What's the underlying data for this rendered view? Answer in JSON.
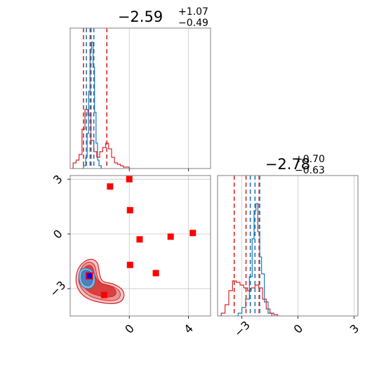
{
  "chart_data": [
    {
      "type": "histogram",
      "panel": "param1-marginal",
      "title": {
        "main": "−2.59",
        "sup": "+1.07",
        "sub": "−0.49"
      },
      "xlim": [
        -4.0,
        5.5
      ],
      "xticks": [
        0,
        4
      ],
      "ylim": [
        0,
        1
      ],
      "grid": true,
      "series": [
        {
          "name": "",
          "color": "#1f77b4",
          "x": [
            -3.2,
            -3.0,
            -2.9,
            -2.8,
            -2.7,
            -2.6,
            -2.5,
            -2.4,
            -2.3,
            -2.2,
            -2.1,
            -2.0,
            -1.8
          ],
          "y": [
            0.0,
            0.02,
            0.08,
            0.25,
            0.55,
            0.85,
            0.9,
            0.72,
            0.4,
            0.18,
            0.06,
            0.02,
            0.0
          ]
        },
        {
          "name": "",
          "color": "#d62728",
          "x": [
            -3.9,
            -3.7,
            -3.5,
            -3.3,
            -3.1,
            -2.9,
            -2.7,
            -2.5,
            -2.3,
            -2.1,
            -1.9,
            -1.7,
            -1.5,
            -1.3,
            -1.1,
            -0.9,
            -0.7,
            -0.5,
            -0.3,
            -0.1,
            0.1
          ],
          "y": [
            0.0,
            0.04,
            0.06,
            0.1,
            0.28,
            0.42,
            0.38,
            0.2,
            0.12,
            0.08,
            0.12,
            0.15,
            0.18,
            0.14,
            0.08,
            0.04,
            0.03,
            0.02,
            0.01,
            0.01,
            0.0
          ]
        }
      ],
      "vlines": [
        {
          "x": -3.1,
          "color": "#d62728"
        },
        {
          "x": -2.59,
          "color": "#d62728"
        },
        {
          "x": -1.52,
          "color": "#d62728"
        },
        {
          "x": -2.9,
          "color": "#1f77b4"
        },
        {
          "x": -2.65,
          "color": "#1f77b4"
        },
        {
          "x": -2.4,
          "color": "#1f77b4"
        }
      ]
    },
    {
      "type": "histogram",
      "panel": "param2-marginal",
      "title": {
        "main": "−2.78",
        "sup": "+0.70",
        "sub": "−0.63"
      },
      "xlim": [
        -4.3,
        3.2
      ],
      "xticks": [
        -3,
        0,
        3
      ],
      "xtick_labels": [
        "−3",
        "0",
        "3"
      ],
      "ylim": [
        0,
        1
      ],
      "grid": true,
      "series": [
        {
          "name": "",
          "color": "#1f77b4",
          "x": [
            -3.3,
            -3.1,
            -2.9,
            -2.7,
            -2.5,
            -2.4,
            -2.3,
            -2.2,
            -2.1,
            -2.0,
            -1.9,
            -1.7,
            -1.5,
            -1.3
          ],
          "y": [
            0.0,
            0.02,
            0.06,
            0.12,
            0.28,
            0.55,
            0.75,
            0.8,
            0.6,
            0.42,
            0.3,
            0.1,
            0.02,
            0.0
          ]
        },
        {
          "name": "",
          "color": "#d62728",
          "x": [
            -4.2,
            -4.0,
            -3.8,
            -3.6,
            -3.4,
            -3.2,
            -3.0,
            -2.8,
            -2.6,
            -2.4,
            -2.2,
            -2.0,
            -1.8,
            -1.6,
            -1.4,
            -1.2,
            -1.0
          ],
          "y": [
            0.0,
            0.02,
            0.08,
            0.18,
            0.25,
            0.24,
            0.22,
            0.2,
            0.18,
            0.2,
            0.22,
            0.2,
            0.12,
            0.05,
            0.02,
            0.01,
            0.0
          ]
        }
      ],
      "vlines": [
        {
          "x": -3.41,
          "color": "#d62728"
        },
        {
          "x": -2.78,
          "color": "#d62728"
        },
        {
          "x": -2.08,
          "color": "#d62728"
        },
        {
          "x": -2.55,
          "color": "#1f77b4"
        },
        {
          "x": -2.3,
          "color": "#1f77b4"
        },
        {
          "x": -2.05,
          "color": "#1f77b4"
        }
      ]
    },
    {
      "type": "scatter",
      "panel": "joint",
      "xlim": [
        -4.0,
        5.5
      ],
      "ylim": [
        -4.5,
        3.2
      ],
      "xticks": [
        0,
        4
      ],
      "yticks": [
        -3,
        0,
        3
      ],
      "ytick_labels": [
        "−3",
        "0",
        "3"
      ],
      "grid": true,
      "contours": [
        {
          "color": "#d62728",
          "shape": "red-posterior"
        },
        {
          "color": "#1f77b4",
          "shape": "blue-posterior"
        }
      ],
      "markers": {
        "color": "#ff0000",
        "shape": "square",
        "points": [
          [
            -1.3,
            2.6
          ],
          [
            0.0,
            3.0
          ],
          [
            0.05,
            1.3
          ],
          [
            0.7,
            -0.3
          ],
          [
            2.8,
            -0.15
          ],
          [
            4.3,
            0.05
          ],
          [
            0.05,
            -1.7
          ],
          [
            1.8,
            -2.15
          ],
          [
            -1.7,
            -3.35
          ],
          [
            -2.7,
            -2.3
          ]
        ]
      },
      "truth": {
        "x": -2.7,
        "y": -2.3,
        "color": "#0000ff"
      }
    }
  ]
}
